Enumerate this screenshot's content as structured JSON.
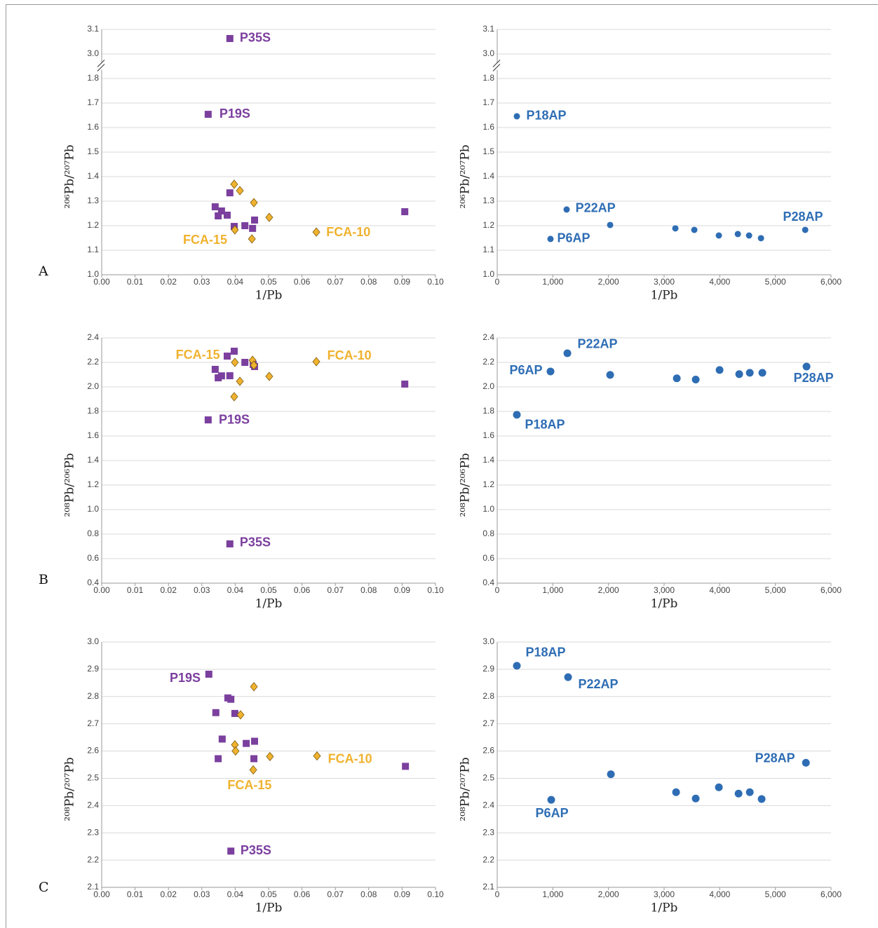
{
  "panel_labels": [
    "A",
    "B",
    "C"
  ],
  "chart_data": [
    {
      "type": "scatter",
      "ylabel": "²⁰⁶Pb/²⁰⁷Pb",
      "xlabel": "1/Pb",
      "xlim": [
        0,
        0.1
      ],
      "xticks": [
        {
          "value": 0,
          "label": "0.00"
        },
        0.01,
        0.02,
        0.03,
        0.04,
        0.05,
        0.06,
        0.07,
        0.08,
        0.09,
        {
          "value": 0.1,
          "label": "0.10"
        }
      ],
      "ylim": [
        1,
        3.1
      ],
      "ybreak": [
        1.8,
        3.0
      ],
      "yticks": [
        {
          "value": 1,
          "label": "1.0"
        },
        1.1,
        1.2,
        1.3,
        1.4,
        1.5,
        1.6,
        1.7,
        1.8,
        {
          "value": 3,
          "label": "3.0"
        },
        3.1
      ],
      "grid": true,
      "series": [
        {
          "color": "#7b3f9e",
          "marker": "square",
          "x": [
            0.0384,
            0.0319,
            0.034,
            0.0349,
            0.0359,
            0.0376,
            0.0384,
            0.0397,
            0.0429,
            0.0452,
            0.0458,
            0.0908
          ],
          "y": [
            3.063,
            1.654,
            1.277,
            1.24,
            1.26,
            1.243,
            1.334,
            1.197,
            1.2,
            1.189,
            1.223,
            1.257
          ]
        },
        {
          "color": "#f0b22e",
          "marker": "diamond",
          "x": [
            0.0397,
            0.0414,
            0.0399,
            0.0456,
            0.045,
            0.0502,
            0.0643
          ],
          "y": [
            1.369,
            1.343,
            1.183,
            1.294,
            1.146,
            1.234,
            1.174
          ]
        }
      ],
      "annotations": [
        {
          "text": "P35S",
          "x": 0.046,
          "y": 3.063,
          "color": "#7b3f9e"
        },
        {
          "text": "P19S",
          "x": 0.0399,
          "y": 1.654,
          "color": "#7b3f9e"
        },
        {
          "text": "FCA-15",
          "x": 0.031,
          "y": 1.14,
          "color": "#f0b22e"
        },
        {
          "text": "FCA-10",
          "x": 0.0739,
          "y": 1.171,
          "color": "#f0b22e"
        }
      ]
    },
    {
      "type": "scatter",
      "ylabel": "²⁰⁶Pb/²⁰⁷Pb",
      "xlabel": "1/Pb",
      "xlim": [
        0,
        6000
      ],
      "xticks": [
        0,
        {
          "value": 1000,
          "label": "1,000"
        },
        {
          "value": 2000,
          "label": "2,000"
        },
        {
          "value": 3000,
          "label": "3,000"
        },
        {
          "value": 4000,
          "label": "4,000"
        },
        {
          "value": 5000,
          "label": "5,000"
        },
        {
          "value": 6000,
          "label": "6,000"
        }
      ],
      "ylim": [
        1,
        3.1
      ],
      "ybreak": [
        1.8,
        3.0
      ],
      "yticks": [
        {
          "value": 1,
          "label": "1.0"
        },
        1.1,
        1.2,
        1.3,
        1.4,
        1.5,
        1.6,
        1.7,
        1.8,
        {
          "value": 3,
          "label": "3.0"
        },
        3.1
      ],
      "grid": true,
      "series": [
        {
          "color": "#2e6db4",
          "marker": "circle",
          "x": [
            353,
            1248,
            958,
            2030,
            3202,
            3543,
            3984,
            4325,
            4527,
            4741,
            5536
          ],
          "y": [
            1.646,
            1.266,
            1.146,
            1.203,
            1.189,
            1.183,
            1.16,
            1.166,
            1.16,
            1.149,
            1.183
          ]
        }
      ],
      "annotations": [
        {
          "text": "P18AP",
          "x": 883,
          "y": 1.646,
          "color": "#2e6db4"
        },
        {
          "text": "P22AP",
          "x": 1766,
          "y": 1.269,
          "color": "#2e6db4"
        },
        {
          "text": "P6AP",
          "x": 1374,
          "y": 1.146,
          "color": "#2e6db4"
        },
        {
          "text": "P28AP",
          "x": 5496,
          "y": 1.234,
          "color": "#2e6db4"
        }
      ]
    },
    {
      "type": "scatter",
      "ylabel": "²⁰⁸Pb/²⁰⁶Pb",
      "xlabel": "1/Pb",
      "xlim": [
        0,
        0.1
      ],
      "xticks": [
        {
          "value": 0,
          "label": "0.00"
        },
        0.01,
        0.02,
        0.03,
        0.04,
        0.05,
        0.06,
        0.07,
        0.08,
        0.09,
        {
          "value": 0.1,
          "label": "0.10"
        }
      ],
      "ylim": [
        0.4,
        2.4
      ],
      "yticks": [
        0.4,
        0.6,
        0.8,
        {
          "value": 1,
          "label": "1.0"
        },
        1.2,
        1.4,
        1.6,
        1.8,
        {
          "value": 2,
          "label": "2.0"
        },
        2.2,
        2.4
      ],
      "grid": true,
      "series": [
        {
          "color": "#7b3f9e",
          "marker": "square",
          "x": [
            0.0384,
            0.0319,
            0.034,
            0.0349,
            0.0359,
            0.0376,
            0.0384,
            0.0397,
            0.0429,
            0.0454,
            0.0458,
            0.0908
          ],
          "y": [
            0.72,
            1.731,
            2.143,
            2.074,
            2.09,
            2.251,
            2.091,
            2.291,
            2.2,
            2.183,
            2.166,
            2.023
          ]
        },
        {
          "color": "#f0b22e",
          "marker": "diamond",
          "x": [
            0.0397,
            0.0399,
            0.0414,
            0.0452,
            0.0456,
            0.0502,
            0.0643
          ],
          "y": [
            1.92,
            2.2,
            2.046,
            2.217,
            2.177,
            2.086,
            2.206
          ]
        }
      ],
      "annotations": [
        {
          "text": "FCA-15",
          "x": 0.0288,
          "y": 2.257,
          "color": "#f0b22e"
        },
        {
          "text": "FCA-10",
          "x": 0.0742,
          "y": 2.251,
          "color": "#f0b22e"
        },
        {
          "text": "P19S",
          "x": 0.0397,
          "y": 1.726,
          "color": "#7b3f9e"
        },
        {
          "text": "P35S",
          "x": 0.046,
          "y": 0.726,
          "color": "#7b3f9e"
        }
      ]
    },
    {
      "type": "scatter",
      "ylabel": "²⁰⁸Pb/²⁰⁶Pb",
      "xlabel": "1/Pb",
      "xlim": [
        0,
        6000
      ],
      "xticks": [
        0,
        {
          "value": 1000,
          "label": "1,000"
        },
        {
          "value": 2000,
          "label": "2,000"
        },
        {
          "value": 3000,
          "label": "3,000"
        },
        {
          "value": 4000,
          "label": "4,000"
        },
        {
          "value": 5000,
          "label": "5,000"
        },
        {
          "value": 6000,
          "label": "6,000"
        }
      ],
      "ylim": [
        0.4,
        2.4
      ],
      "yticks": [
        0.4,
        0.6,
        0.8,
        {
          "value": 1,
          "label": "1.0"
        },
        1.2,
        1.4,
        1.6,
        1.8,
        {
          "value": 2,
          "label": "2.0"
        },
        2.2,
        2.4
      ],
      "grid": true,
      "series": [
        {
          "color": "#2e6db4",
          "marker": "circle",
          "x": [
            353,
            958,
            1261,
            2030,
            3228,
            3568,
            3997,
            4350,
            4540,
            4766,
            5560
          ],
          "y": [
            1.773,
            2.126,
            2.274,
            2.098,
            2.07,
            2.06,
            2.138,
            2.104,
            2.115,
            2.115,
            2.166
          ]
        }
      ],
      "annotations": [
        {
          "text": "P22AP",
          "x": 1803,
          "y": 2.345,
          "color": "#2e6db4"
        },
        {
          "text": "P6AP",
          "x": 517,
          "y": 2.131,
          "color": "#2e6db4"
        },
        {
          "text": "P28AP",
          "x": 5686,
          "y": 2.068,
          "color": "#2e6db4"
        },
        {
          "text": "P18AP",
          "x": 858,
          "y": 1.687,
          "color": "#2e6db4"
        }
      ]
    },
    {
      "type": "scatter",
      "ylabel": "²⁰⁸Pb/²⁰⁷Pb",
      "xlabel": "1/Pb",
      "xlim": [
        0,
        0.1
      ],
      "xticks": [
        {
          "value": 0,
          "label": "0.00"
        },
        0.01,
        0.02,
        0.03,
        0.04,
        0.05,
        0.06,
        0.07,
        0.08,
        0.09,
        {
          "value": 0.1,
          "label": "0.10"
        }
      ],
      "ylim": [
        2.1,
        3.0
      ],
      "yticks": [
        2.1,
        2.2,
        2.3,
        2.4,
        2.5,
        2.6,
        2.7,
        2.8,
        2.9,
        {
          "value": 3,
          "label": "3.0"
        }
      ],
      "grid": true,
      "series": [
        {
          "color": "#7b3f9e",
          "marker": "square",
          "x": [
            0.0321,
            0.0378,
            0.0387,
            0.0342,
            0.0399,
            0.0361,
            0.0433,
            0.0458,
            0.0349,
            0.0456,
            0.0387,
            0.091
          ],
          "y": [
            2.882,
            2.795,
            2.79,
            2.741,
            2.738,
            2.644,
            2.628,
            2.636,
            2.572,
            2.572,
            2.233,
            2.544
          ]
        },
        {
          "color": "#f0b22e",
          "marker": "diamond",
          "x": [
            0.0456,
            0.0416,
            0.0399,
            0.0401,
            0.0454,
            0.0504,
            0.0645
          ],
          "y": [
            2.836,
            2.733,
            2.623,
            2.6,
            2.531,
            2.58,
            2.582
          ]
        }
      ],
      "annotations": [
        {
          "text": "P19S",
          "x": 0.025,
          "y": 2.866,
          "color": "#7b3f9e"
        },
        {
          "text": "FCA-10",
          "x": 0.0744,
          "y": 2.569,
          "color": "#f0b22e"
        },
        {
          "text": "FCA-15",
          "x": 0.0443,
          "y": 2.472,
          "color": "#f0b22e"
        },
        {
          "text": "P35S",
          "x": 0.0462,
          "y": 2.233,
          "color": "#7b3f9e"
        }
      ]
    },
    {
      "type": "scatter",
      "ylabel": "²⁰⁸Pb/²⁰⁷Pb",
      "xlabel": "1/Pb",
      "xlim": [
        0,
        6000
      ],
      "xticks": [
        0,
        {
          "value": 1000,
          "label": "1,000"
        },
        {
          "value": 2000,
          "label": "2,000"
        },
        {
          "value": 3000,
          "label": "3,000"
        },
        {
          "value": 4000,
          "label": "4,000"
        },
        {
          "value": 5000,
          "label": "5,000"
        },
        {
          "value": 6000,
          "label": "6,000"
        }
      ],
      "ylim": [
        2.1,
        3.0
      ],
      "yticks": [
        2.1,
        2.2,
        2.3,
        2.4,
        2.5,
        2.6,
        2.7,
        2.8,
        2.9,
        {
          "value": 3,
          "label": "3.0"
        }
      ],
      "grid": true,
      "series": [
        {
          "color": "#2e6db4",
          "marker": "circle",
          "x": [
            353,
            971,
            1274,
            2043,
            3215,
            3568,
            3984,
            4338,
            4540,
            4753,
            5549
          ],
          "y": [
            2.913,
            2.421,
            2.871,
            2.515,
            2.449,
            2.426,
            2.467,
            2.444,
            2.449,
            2.424,
            2.557
          ]
        }
      ],
      "annotations": [
        {
          "text": "P18AP",
          "x": 870,
          "y": 2.959,
          "color": "#2e6db4"
        },
        {
          "text": "P22AP",
          "x": 1816,
          "y": 2.843,
          "color": "#2e6db4"
        },
        {
          "text": "P28AP",
          "x": 4993,
          "y": 2.571,
          "color": "#2e6db4"
        },
        {
          "text": "P6AP",
          "x": 984,
          "y": 2.37,
          "color": "#2e6db4"
        }
      ]
    }
  ]
}
